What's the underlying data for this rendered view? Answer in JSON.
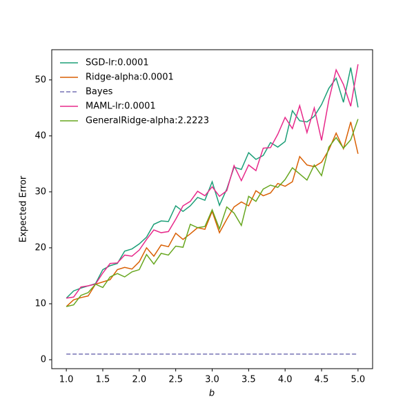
{
  "chart_data": {
    "type": "line",
    "xlabel": "b",
    "ylabel": "Expected Error",
    "x": [
      1.0,
      1.1,
      1.2,
      1.3,
      1.4,
      1.5,
      1.6,
      1.7,
      1.8,
      1.9,
      2.0,
      2.1,
      2.2,
      2.3,
      2.4,
      2.5,
      2.6,
      2.7,
      2.8,
      2.9,
      3.0,
      3.1,
      3.2,
      3.3,
      3.4,
      3.5,
      3.6,
      3.7,
      3.8,
      3.9,
      4.0,
      4.1,
      4.2,
      4.3,
      4.4,
      4.5,
      4.6,
      4.7,
      4.8,
      4.9,
      5.0
    ],
    "series": [
      {
        "name": "SGD-lr:0.0001",
        "color": "#1b9e77",
        "values": [
          11,
          12.3,
          12.8,
          13.2,
          13.6,
          16.1,
          16.8,
          17.2,
          19.4,
          19.8,
          20.7,
          21.9,
          24.2,
          24.8,
          24.7,
          27.5,
          26.5,
          27.5,
          29.0,
          28.5,
          31.8,
          27.6,
          30.5,
          34.4,
          34.0,
          37.0,
          35.8,
          36.5,
          38.8,
          38.0,
          39.0,
          44.5,
          42.7,
          42.5,
          43.5,
          45.6,
          48.5,
          50.3,
          46.0,
          52.2,
          45.1
        ]
      },
      {
        "name": "Ridge-alpha:0.0001",
        "color": "#d95f02",
        "values": [
          9.5,
          10.7,
          11.1,
          11.4,
          13.5,
          13.9,
          14.3,
          16.1,
          16.5,
          16.2,
          17.5,
          20.0,
          18.5,
          20.5,
          20.2,
          22.6,
          21.5,
          22.5,
          23.6,
          23.3,
          26.5,
          22.7,
          25.1,
          27.3,
          28.2,
          27.5,
          30.2,
          29.3,
          29.8,
          31.5,
          31.0,
          31.8,
          36.3,
          34.8,
          34.5,
          35.3,
          37.5,
          40.5,
          37.7,
          42.5,
          36.8
        ]
      },
      {
        "name": "Bayes",
        "color": "#7570b3",
        "linestyle": "dashed",
        "values": [
          1,
          1,
          1,
          1,
          1,
          1,
          1,
          1,
          1,
          1,
          1,
          1,
          1,
          1,
          1,
          1,
          1,
          1,
          1,
          1,
          1,
          1,
          1,
          1,
          1,
          1,
          1,
          1,
          1,
          1,
          1,
          1,
          1,
          1,
          1,
          1,
          1,
          1,
          1,
          1,
          1
        ]
      },
      {
        "name": "MAML-lr:0.0001",
        "color": "#e7298a",
        "values": [
          11,
          11.2,
          13,
          13.2,
          13.5,
          15.5,
          17.2,
          17.3,
          18.7,
          18.5,
          19.6,
          21.5,
          23.2,
          22.7,
          22.9,
          25.1,
          27.5,
          28.3,
          30.1,
          29.3,
          30.9,
          29.2,
          30.2,
          34.7,
          32.0,
          34.8,
          33.8,
          37.8,
          37.9,
          40.3,
          43.3,
          41.3,
          45.4,
          40.6,
          45.0,
          39.2,
          46.4,
          51.8,
          49.2,
          45.3,
          52.8
        ]
      },
      {
        "name": "GeneralRidge-alpha:2.2223",
        "color": "#66a61e",
        "values": [
          9.5,
          9.8,
          11.5,
          12,
          13.5,
          12.9,
          14.8,
          15.4,
          14.8,
          15.7,
          16.1,
          18.8,
          17.1,
          19,
          18.7,
          20.3,
          20.1,
          24.2,
          23.6,
          23.8,
          26.8,
          23.4,
          27.3,
          26.2,
          24,
          29.2,
          28.3,
          30.5,
          31.2,
          30.8,
          32.2,
          34.3,
          33.2,
          32.1,
          34.8,
          32.9,
          38,
          39.7,
          37.8,
          39.3,
          43
        ]
      }
    ],
    "xlim": [
      0.8,
      5.2
    ],
    "ylim": [
      -1.6,
      55.4
    ],
    "xticks": [
      {
        "value": 1.0,
        "label": "1.0"
      },
      {
        "value": 1.5,
        "label": "1.5"
      },
      {
        "value": 2.0,
        "label": "2.0"
      },
      {
        "value": 2.5,
        "label": "2.5"
      },
      {
        "value": 3.0,
        "label": "3.0"
      },
      {
        "value": 3.5,
        "label": "3.5"
      },
      {
        "value": 4.0,
        "label": "4.0"
      },
      {
        "value": 4.5,
        "label": "4.5"
      },
      {
        "value": 5.0,
        "label": "5.0"
      }
    ],
    "yticks": [
      0,
      10,
      20,
      30,
      40,
      50
    ],
    "legend": "upper left"
  }
}
